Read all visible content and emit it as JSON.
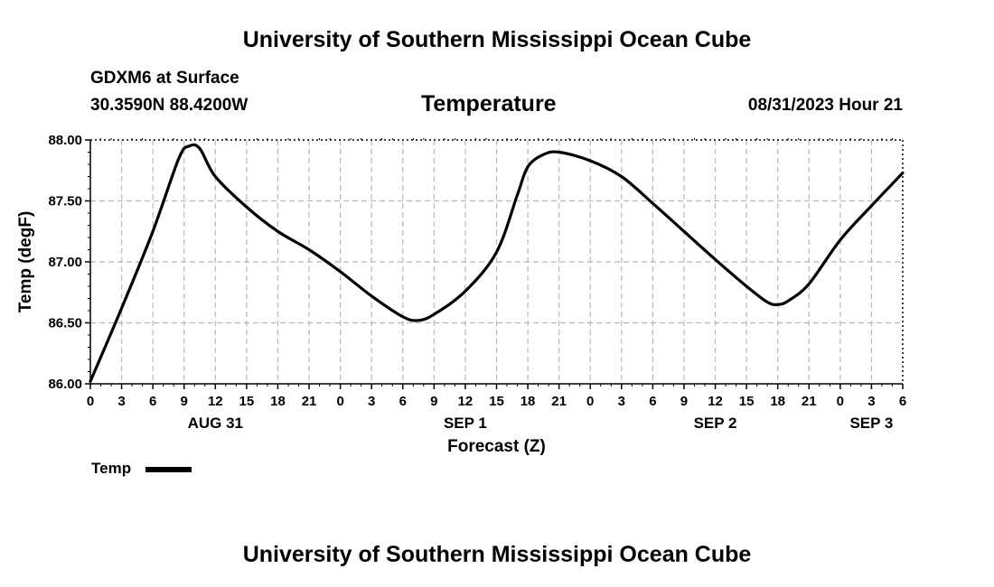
{
  "header": {
    "title": "University of Southern Mississippi Ocean Cube",
    "station": "GDXM6 at Surface",
    "location": "30.3590N  88.4200W",
    "datetime": "08/31/2023 Hour 21"
  },
  "footer": {
    "title": "University of Southern Mississippi Ocean Cube"
  },
  "chart_data": {
    "type": "line",
    "title": "Temperature",
    "xlabel": "Forecast (Z)",
    "ylabel": "Temp (degF)",
    "ylim": [
      86.0,
      88.0
    ],
    "yticks": [
      "86.00",
      "86.50",
      "87.00",
      "87.50",
      "88.00"
    ],
    "xlim_hours": [
      0,
      78
    ],
    "xtick_labels": [
      "0",
      "3",
      "6",
      "9",
      "12",
      "15",
      "18",
      "21",
      "0",
      "3",
      "6",
      "9",
      "12",
      "15",
      "18",
      "21",
      "0",
      "3",
      "6",
      "9",
      "12",
      "15",
      "18",
      "21",
      "0",
      "3",
      "6"
    ],
    "date_labels": [
      {
        "hour": 12,
        "label": "AUG 31"
      },
      {
        "hour": 36,
        "label": "SEP 1"
      },
      {
        "hour": 60,
        "label": "SEP 2"
      },
      {
        "hour": 75,
        "label": "SEP 3"
      }
    ],
    "grid": true,
    "legend": {
      "position": "bottom-left",
      "label": "Temp"
    },
    "series": [
      {
        "name": "Temp",
        "color": "#000000",
        "x_hours": [
          0,
          3,
          6,
          8.5,
          9.5,
          10.5,
          12,
          15,
          18,
          21,
          24,
          27,
          30,
          31.5,
          33,
          36,
          39,
          41,
          42,
          43.5,
          45,
          48,
          51,
          54,
          57,
          60,
          63,
          65,
          66,
          67,
          69,
          72,
          75,
          78
        ],
        "values": [
          86.02,
          86.62,
          87.25,
          87.85,
          87.95,
          87.93,
          87.7,
          87.45,
          87.25,
          87.1,
          86.92,
          86.72,
          86.55,
          86.52,
          86.57,
          86.76,
          87.08,
          87.55,
          87.78,
          87.88,
          87.9,
          87.83,
          87.7,
          87.48,
          87.25,
          87.02,
          86.8,
          86.67,
          86.65,
          86.68,
          86.82,
          87.18,
          87.46,
          87.73
        ]
      }
    ]
  }
}
